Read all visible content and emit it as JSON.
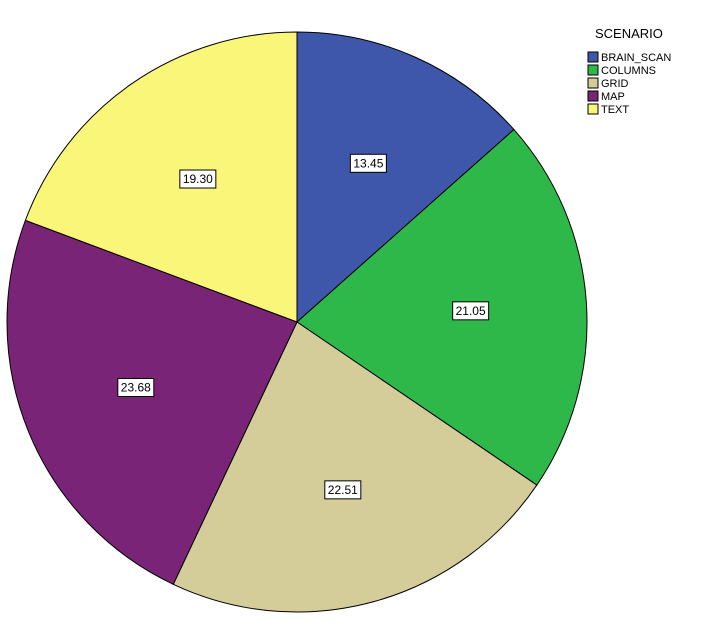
{
  "chart_data": {
    "type": "pie",
    "legend_title": "SCENARIO",
    "legend_position": "top-right",
    "categories": [
      "BRAIN_SCAN",
      "COLUMNS",
      "GRID",
      "MAP",
      "TEXT"
    ],
    "values": [
      13.45,
      21.05,
      22.51,
      23.68,
      19.3
    ],
    "labels": [
      "13.45",
      "21.05",
      "22.51",
      "23.68",
      "19.30"
    ],
    "colors": [
      "#3f57ab",
      "#2fb84a",
      "#d4cc99",
      "#7a2477",
      "#faf67a"
    ],
    "start_angle": "12 o'clock",
    "direction": "clockwise"
  }
}
